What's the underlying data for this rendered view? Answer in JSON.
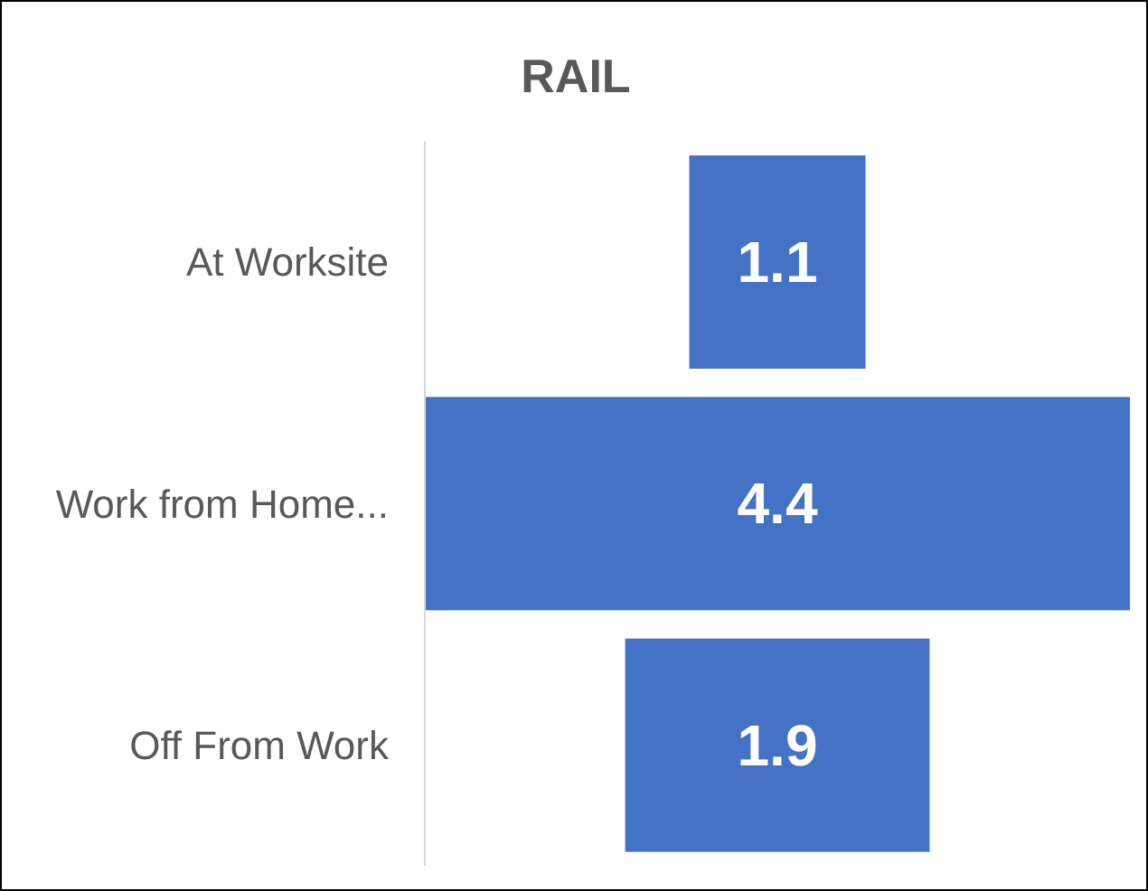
{
  "chart_data": {
    "type": "other",
    "title": "RAIL",
    "categories": [
      "At Worksite",
      "Work from Home...",
      "Off From Work"
    ],
    "values": [
      1.1,
      4.4,
      1.9
    ],
    "color": "#4472c4",
    "data_labels": true
  }
}
